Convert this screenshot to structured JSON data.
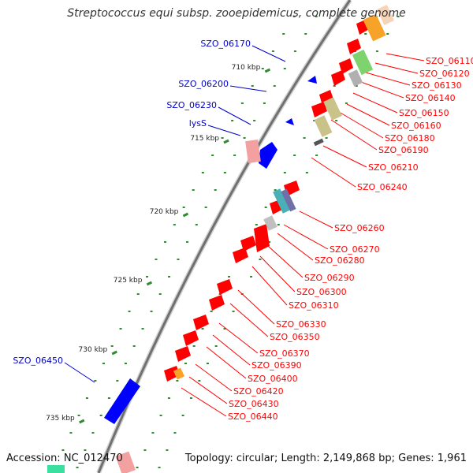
{
  "title": "Streptococcus equi subsp. zooepidemicus, complete genome",
  "footer": {
    "accession": "Accession: NC_012470",
    "summary": "Topology: circular; Length: 2,149,868 bp; Genes: 1,961"
  },
  "colors": {
    "forward_label": "#0000cc",
    "reverse_label": "#ff0000",
    "forward_feature": "#0000ff",
    "reverse_feature": "#ff0000",
    "backbone": "#888888",
    "gc_dots": "#2e8b2e"
  },
  "scale_ticks": [
    {
      "label": "710 kbp"
    },
    {
      "label": "715 kbp"
    },
    {
      "label": "720 kbp"
    },
    {
      "label": "725 kbp"
    },
    {
      "label": "730 kbp"
    },
    {
      "label": "735 kbp"
    }
  ],
  "forward_genes": [
    {
      "label": "SZO_06170"
    },
    {
      "label": "SZO_06200"
    },
    {
      "label": "SZO_06230"
    },
    {
      "label": "lysS"
    },
    {
      "label": "SZO_06450"
    }
  ],
  "reverse_genes": [
    {
      "label": "SZO_06110"
    },
    {
      "label": "SZO_06120"
    },
    {
      "label": "SZO_06130"
    },
    {
      "label": "SZO_06140"
    },
    {
      "label": "SZO_06150"
    },
    {
      "label": "SZO_06160"
    },
    {
      "label": "SZO_06180"
    },
    {
      "label": "SZO_06190"
    },
    {
      "label": "SZO_06210"
    },
    {
      "label": "SZO_06240"
    },
    {
      "label": "SZO_06260"
    },
    {
      "label": "SZO_06270"
    },
    {
      "label": "SZO_06280"
    },
    {
      "label": "SZO_06290"
    },
    {
      "label": "SZO_06300"
    },
    {
      "label": "SZO_06310"
    },
    {
      "label": "SZO_06330"
    },
    {
      "label": "SZO_06350"
    },
    {
      "label": "SZO_06370"
    },
    {
      "label": "SZO_06390"
    },
    {
      "label": "SZO_06400"
    },
    {
      "label": "SZO_06420"
    },
    {
      "label": "SZO_06430"
    },
    {
      "label": "SZO_06440"
    }
  ]
}
